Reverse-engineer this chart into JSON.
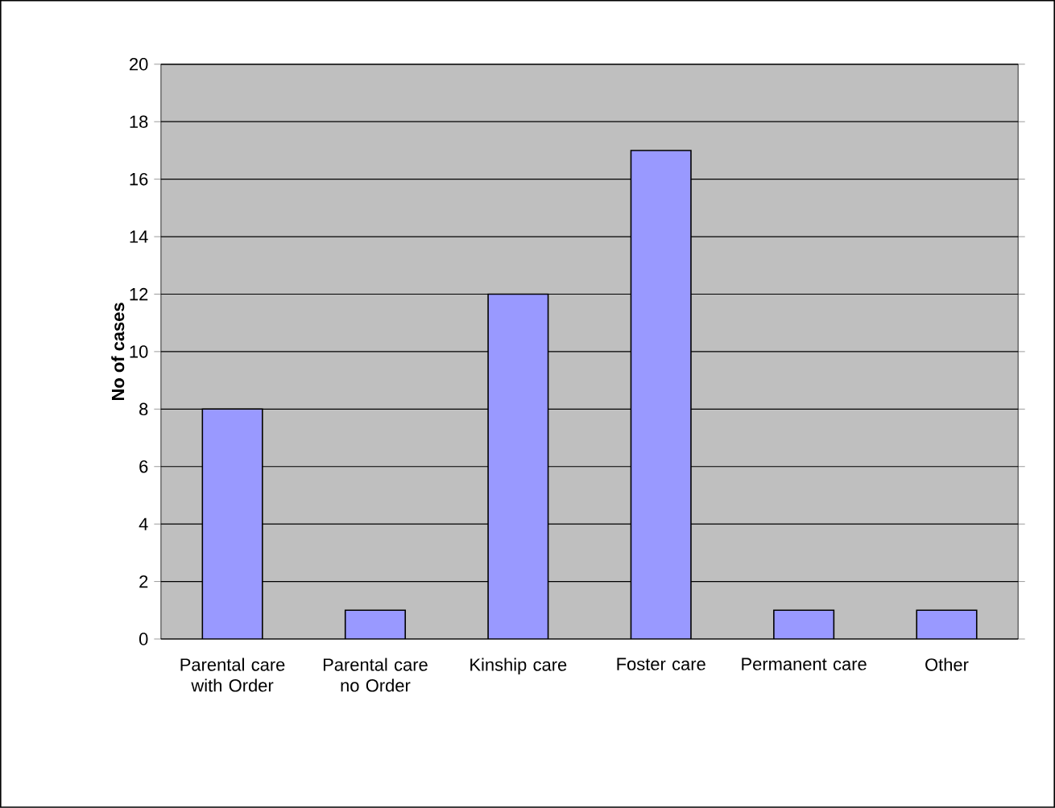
{
  "chart_data": {
    "type": "bar",
    "ylabel": "No of cases",
    "categories": [
      "Parental care with Order",
      "Parental care no Order",
      "Kinship care",
      "Foster care",
      "Permanent care",
      "Other"
    ],
    "values": [
      8,
      1,
      12,
      17,
      1,
      1
    ],
    "color": "#9999ff",
    "ylim": [
      0,
      20
    ],
    "yticks": [
      0,
      2,
      4,
      6,
      8,
      10,
      12,
      14,
      16,
      18,
      20
    ],
    "grid": "y"
  }
}
